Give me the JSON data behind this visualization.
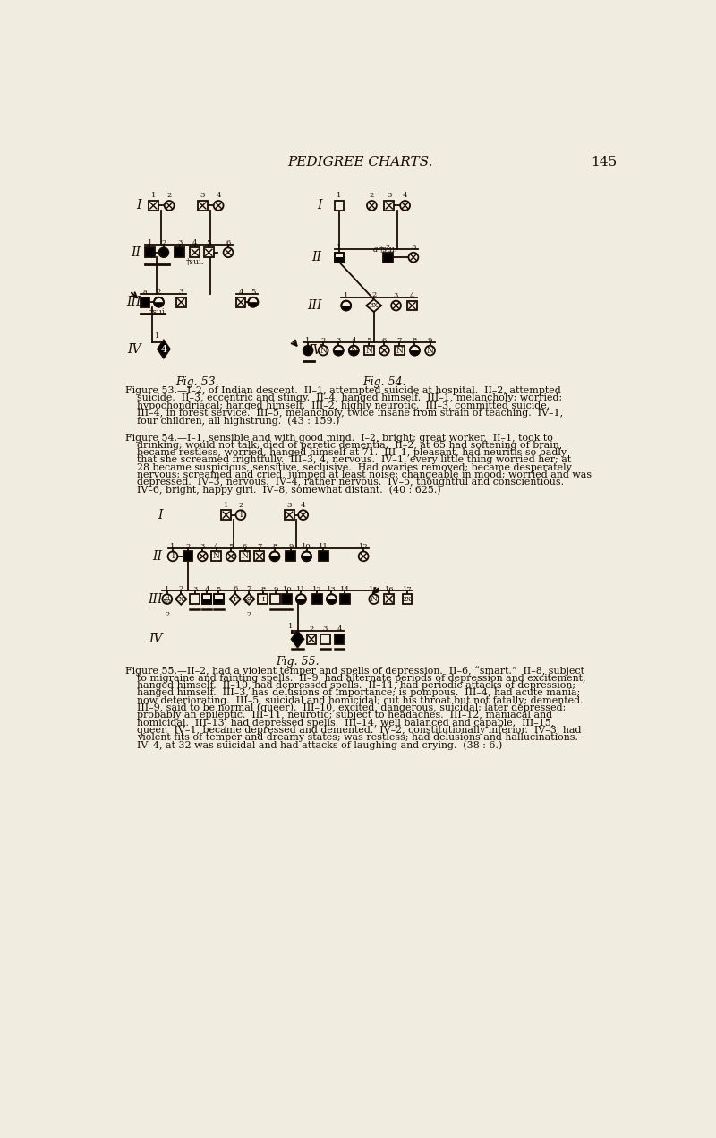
{
  "bg_color": "#f0ede0",
  "text_color": "#1a0a00",
  "line_color": "#1a0a00",
  "page_title": "PEDIGREE CHARTS.",
  "page_number": "145",
  "fig53_label": "Fig. 53.",
  "fig54_label": "Fig. 54.",
  "fig55_label": "Fig. 55.",
  "sz": 14,
  "r": 7.0,
  "lw": 1.3
}
